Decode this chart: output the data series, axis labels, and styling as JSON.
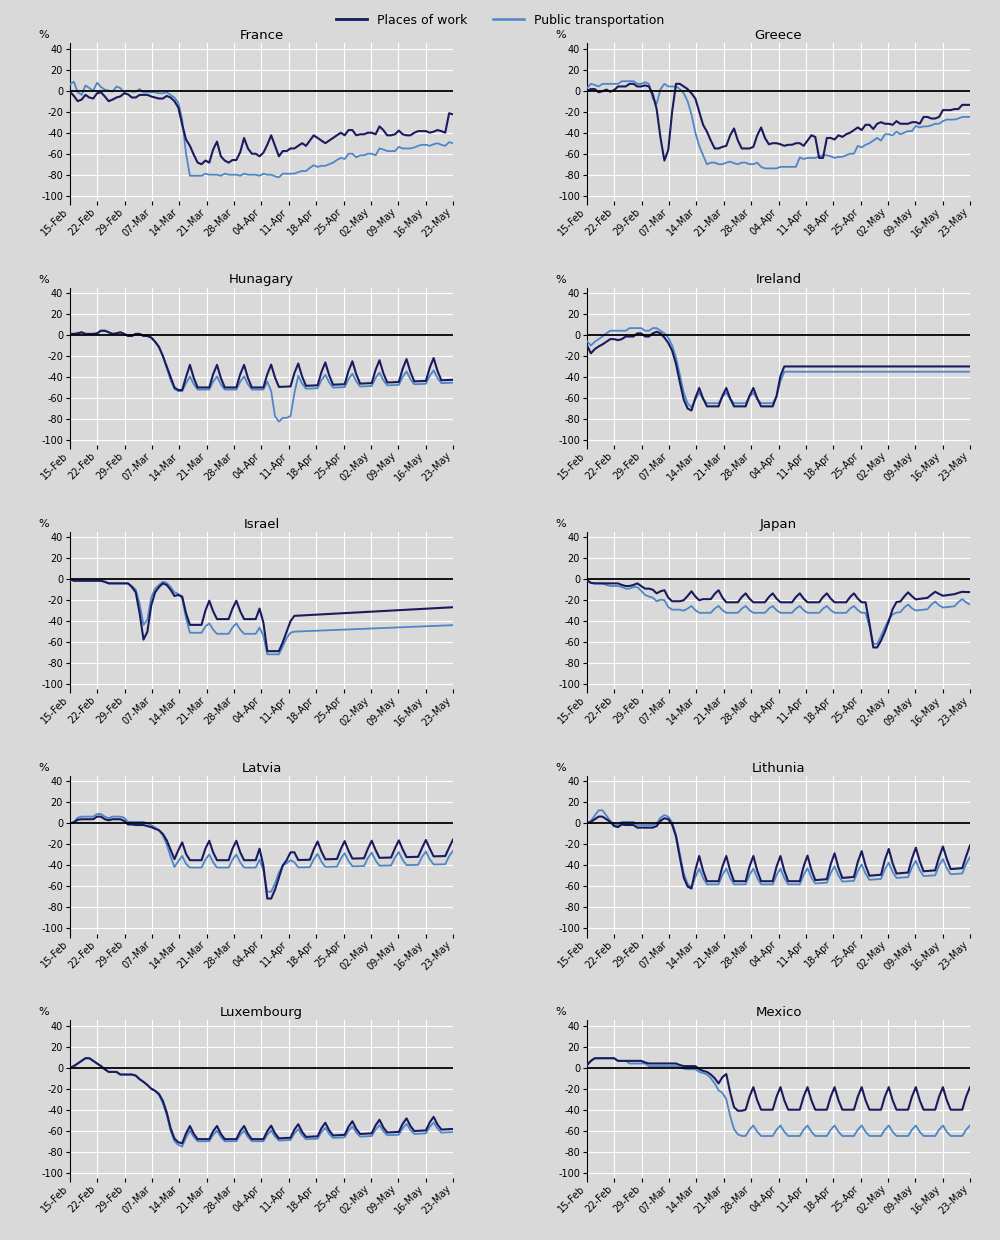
{
  "countries": [
    "France",
    "Greece",
    "Hunagary",
    "Ireland",
    "Israel",
    "Japan",
    "Latvia",
    "Lithunia",
    "Luxembourg",
    "Mexico"
  ],
  "date_labels": [
    "15-Feb",
    "22-Feb",
    "29-Feb",
    "07-Mar",
    "14-Mar",
    "21-Mar",
    "28-Mar",
    "04-Apr",
    "11-Apr",
    "18-Apr",
    "25-Apr",
    "02-May",
    "09-May",
    "16-May",
    "23-May"
  ],
  "n_points": 100,
  "ylim": [
    -105,
    45
  ],
  "yticks": [
    -100,
    -80,
    -60,
    -40,
    -20,
    0,
    20,
    40
  ],
  "work_color": "#1a1a5e",
  "transit_color": "#4f86c6",
  "bg_color": "#d9d9d9",
  "fig_bg": "#c8c8c8",
  "grid_color": "white",
  "zero_line_color": "black",
  "title_fontsize": 9.5,
  "label_fontsize": 8,
  "tick_fontsize": 7,
  "work_lw": 1.5,
  "transit_lw": 1.3,
  "nrows": 5,
  "ncols": 2
}
